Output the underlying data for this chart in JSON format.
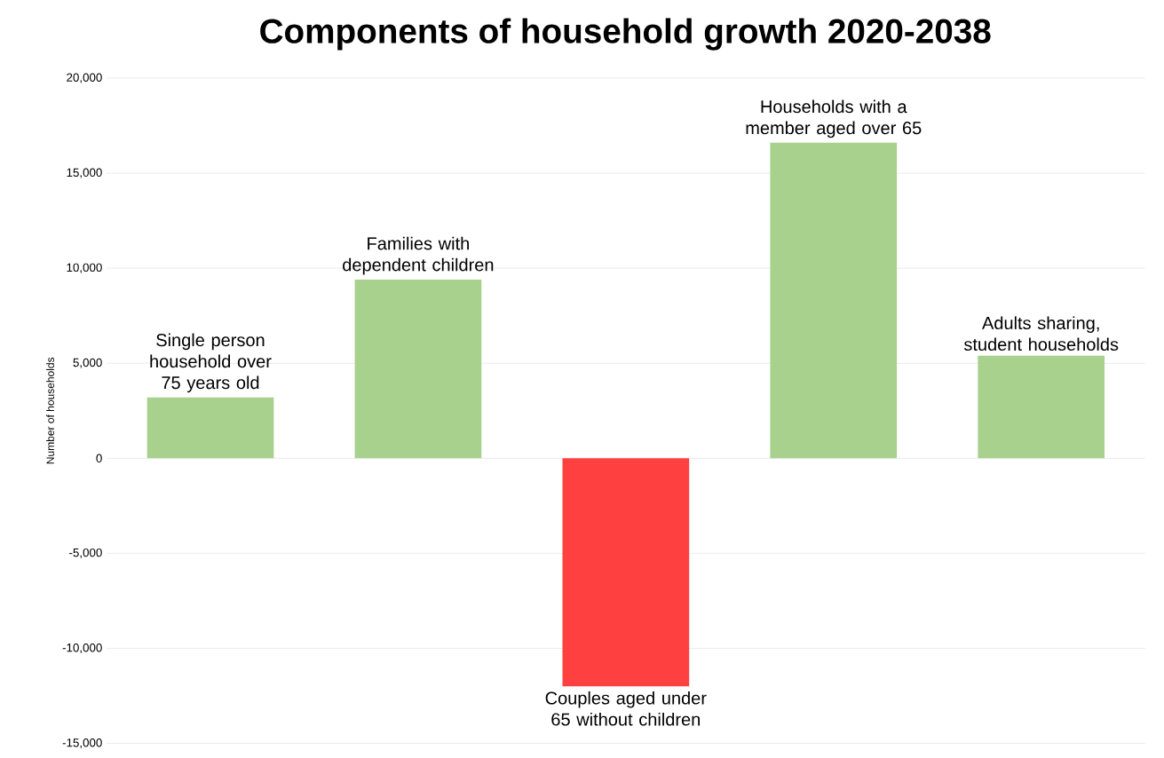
{
  "chart_data": {
    "type": "bar",
    "title": "Components of household growth 2020-2038",
    "ylabel": "Number of households",
    "categories": [
      "Single person household over 75 years old",
      "Families with dependent children",
      "Couples aged under 65 without children",
      "Households with a member aged over 65",
      "Adults sharing, student households"
    ],
    "values": [
      3200,
      9400,
      -12000,
      16600,
      5400
    ],
    "colors": [
      "#a9d18e",
      "#a9d18e",
      "#ff4040",
      "#a9d18e",
      "#a9d18e"
    ],
    "ylim": [
      -15000,
      20000
    ],
    "yticks": [
      {
        "value": -15000,
        "label": "-15,000"
      },
      {
        "value": -10000,
        "label": "-10,000"
      },
      {
        "value": -5000,
        "label": "-5,000"
      },
      0,
      {
        "value": 5000,
        "label": "5,000"
      },
      {
        "value": 10000,
        "label": "10,000"
      },
      {
        "value": 15000,
        "label": "15,000"
      },
      {
        "value": 20000,
        "label": "20,000"
      }
    ],
    "grid": "y"
  }
}
